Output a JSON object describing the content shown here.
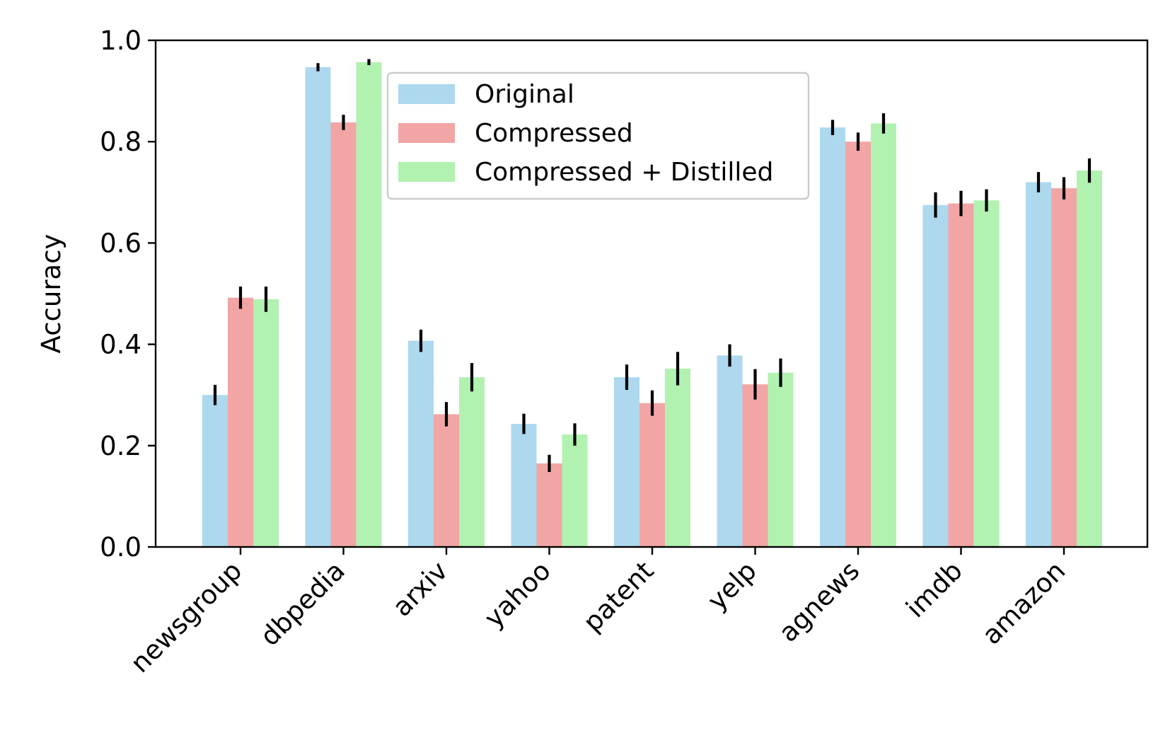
{
  "chart_data": {
    "type": "bar",
    "title": "",
    "xlabel": "",
    "ylabel": "Accuracy",
    "ylim": [
      0,
      1.0
    ],
    "yticks": [
      0.0,
      0.2,
      0.4,
      0.6,
      0.8,
      1.0
    ],
    "ytick_labels": [
      "0.0",
      "0.2",
      "0.4",
      "0.6",
      "0.8",
      "1.0"
    ],
    "categories": [
      "newsgroup",
      "dbpedia",
      "arxiv",
      "yahoo",
      "patent",
      "yelp",
      "agnews",
      "imdb",
      "amazon"
    ],
    "series": [
      {
        "name": "Original",
        "color": "#add8ee",
        "values": [
          0.3,
          0.947,
          0.407,
          0.243,
          0.335,
          0.378,
          0.828,
          0.675,
          0.72
        ],
        "errors": [
          0.02,
          0.008,
          0.022,
          0.02,
          0.025,
          0.022,
          0.015,
          0.025,
          0.02
        ]
      },
      {
        "name": "Compressed",
        "color": "#f2a5a5",
        "values": [
          0.492,
          0.838,
          0.262,
          0.165,
          0.284,
          0.321,
          0.8,
          0.678,
          0.708
        ],
        "errors": [
          0.022,
          0.015,
          0.024,
          0.017,
          0.025,
          0.03,
          0.018,
          0.025,
          0.022
        ]
      },
      {
        "name": "Compressed + Distilled",
        "color": "#b1f2b1",
        "values": [
          0.489,
          0.957,
          0.335,
          0.222,
          0.352,
          0.344,
          0.836,
          0.684,
          0.743
        ],
        "errors": [
          0.025,
          0.006,
          0.028,
          0.022,
          0.033,
          0.028,
          0.02,
          0.022,
          0.024
        ]
      }
    ],
    "legend_position": "top-center",
    "grid": false
  }
}
